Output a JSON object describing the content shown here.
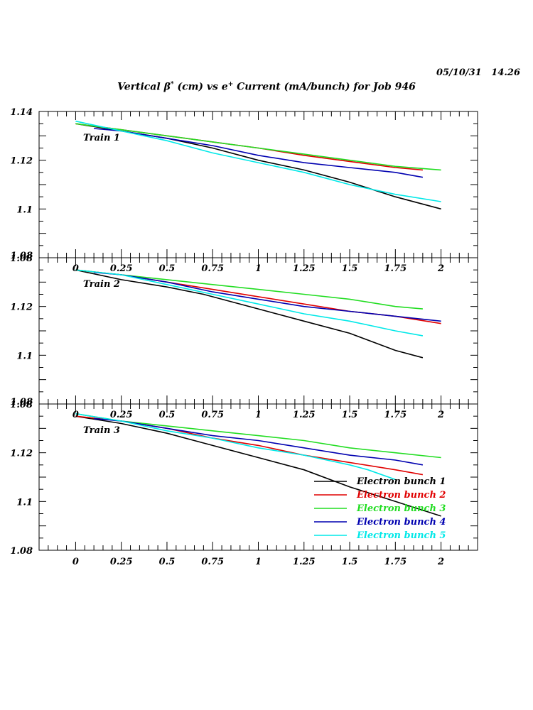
{
  "timestamp": "05/10/31   14.26",
  "title": {
    "p1": "Vertical ",
    "beta": "β",
    "sup1": "*",
    "p2": " (cm) vs e",
    "sup2": "+",
    "p3": " Current (mA/bunch) for Job 946"
  },
  "chart_data": {
    "type": "line",
    "xlim": [
      -0.2,
      2.2
    ],
    "ylim": [
      1.08,
      1.14
    ],
    "x_ticks": [
      "0",
      "0.25",
      "0.5",
      "0.75",
      "1",
      "1.25",
      "1.5",
      "1.75",
      "2"
    ],
    "y_tick_labels": [
      "1.14",
      "1.12",
      "1.1",
      "1.08"
    ],
    "overlap_label": "1.08",
    "legend_position": "bottom-right (panel 3)",
    "series_styles": [
      {
        "name": "Electron bunch 1",
        "color": "#000000"
      },
      {
        "name": "Electron bunch 2",
        "color": "#e00000"
      },
      {
        "name": "Electron bunch 3",
        "color": "#22dd22"
      },
      {
        "name": "Electron bunch 4",
        "color": "#0000b0"
      },
      {
        "name": "Electron bunch 5",
        "color": "#00e8e8"
      }
    ],
    "panels": [
      {
        "label": "Train 1",
        "series": [
          {
            "x": [
              0,
              0.25,
              0.5,
              0.75,
              1,
              1.25,
              1.5,
              1.75,
              2
            ],
            "y": [
              1.135,
              1.132,
              1.129,
              1.125,
              1.12,
              1.116,
              1.111,
              1.105,
              1.1
            ]
          },
          {
            "x": [
              0,
              0.25,
              0.5,
              0.75,
              1,
              1.25,
              1.5,
              1.75,
              1.9
            ],
            "y": [
              1.135,
              1.1325,
              1.13,
              1.1275,
              1.125,
              1.122,
              1.1195,
              1.117,
              1.116
            ]
          },
          {
            "x": [
              0,
              0.25,
              0.5,
              0.75,
              1,
              1.25,
              1.5,
              1.75,
              2
            ],
            "y": [
              1.135,
              1.1325,
              1.13,
              1.1275,
              1.125,
              1.1225,
              1.12,
              1.1175,
              1.116
            ]
          },
          {
            "x": [
              0.1,
              0.25,
              0.5,
              0.75,
              1,
              1.25,
              1.5,
              1.75,
              1.9
            ],
            "y": [
              1.133,
              1.132,
              1.129,
              1.126,
              1.122,
              1.119,
              1.117,
              1.115,
              1.113
            ]
          },
          {
            "x": [
              0,
              0.25,
              0.5,
              0.75,
              1,
              1.25,
              1.5,
              1.75,
              2
            ],
            "y": [
              1.136,
              1.132,
              1.128,
              1.123,
              1.119,
              1.115,
              1.11,
              1.106,
              1.103
            ]
          }
        ]
      },
      {
        "label": "Train 2",
        "series": [
          {
            "x": [
              0,
              0.25,
              0.5,
              0.7,
              1,
              1.25,
              1.5,
              1.75,
              1.9
            ],
            "y": [
              1.135,
              1.131,
              1.128,
              1.125,
              1.119,
              1.114,
              1.109,
              1.102,
              1.099
            ]
          },
          {
            "x": [
              0,
              0.25,
              0.5,
              0.75,
              1,
              1.25,
              1.5,
              1.75,
              2
            ],
            "y": [
              1.135,
              1.133,
              1.13,
              1.127,
              1.124,
              1.121,
              1.118,
              1.116,
              1.113
            ]
          },
          {
            "x": [
              0,
              0.25,
              0.5,
              0.75,
              1,
              1.25,
              1.5,
              1.75,
              1.9
            ],
            "y": [
              1.135,
              1.133,
              1.131,
              1.129,
              1.127,
              1.125,
              1.123,
              1.12,
              1.119
            ]
          },
          {
            "x": [
              0.1,
              0.25,
              0.5,
              0.75,
              1,
              1.25,
              1.5,
              1.75,
              2
            ],
            "y": [
              1.134,
              1.133,
              1.13,
              1.126,
              1.123,
              1.12,
              1.118,
              1.116,
              1.114
            ]
          },
          {
            "x": [
              0,
              0.25,
              0.5,
              0.75,
              1,
              1.25,
              1.5,
              1.75,
              1.9
            ],
            "y": [
              1.135,
              1.133,
              1.129,
              1.125,
              1.121,
              1.117,
              1.114,
              1.11,
              1.108
            ]
          }
        ]
      },
      {
        "label": "Train 3",
        "series": [
          {
            "x": [
              0,
              0.25,
              0.5,
              0.75,
              1,
              1.25,
              1.5,
              1.75,
              2
            ],
            "y": [
              1.135,
              1.132,
              1.128,
              1.123,
              1.118,
              1.113,
              1.106,
              1.1,
              1.094
            ]
          },
          {
            "x": [
              0,
              0.25,
              0.5,
              0.75,
              1,
              1.25,
              1.5,
              1.75,
              1.9
            ],
            "y": [
              1.135,
              1.133,
              1.13,
              1.126,
              1.123,
              1.119,
              1.116,
              1.113,
              1.111
            ]
          },
          {
            "x": [
              0,
              0.25,
              0.5,
              0.75,
              1,
              1.25,
              1.5,
              1.75,
              2
            ],
            "y": [
              1.136,
              1.133,
              1.131,
              1.129,
              1.127,
              1.125,
              1.122,
              1.12,
              1.118
            ]
          },
          {
            "x": [
              0.1,
              0.25,
              0.5,
              0.75,
              1,
              1.25,
              1.5,
              1.75,
              1.9
            ],
            "y": [
              1.134,
              1.133,
              1.13,
              1.127,
              1.125,
              1.122,
              1.119,
              1.117,
              1.115
            ]
          },
          {
            "x": [
              0,
              0.25,
              0.5,
              0.75,
              1,
              1.25,
              1.5,
              1.6,
              1.75
            ],
            "y": [
              1.136,
              1.133,
              1.129,
              1.126,
              1.122,
              1.119,
              1.115,
              1.113,
              1.109
            ]
          }
        ]
      }
    ]
  }
}
